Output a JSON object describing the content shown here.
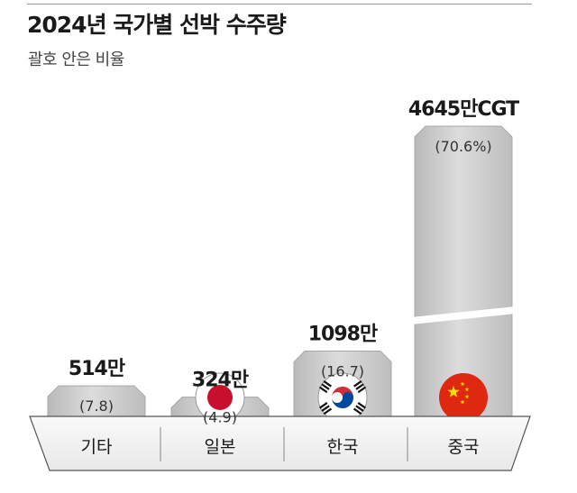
{
  "title": "2024년 국가별 선박 수주량",
  "subtitle": "괄호 안은 비율",
  "chart_data": {
    "type": "bar",
    "title": "2024년 국가별 선박 수주량",
    "subtitle": "괄호 안은 비율",
    "categories": [
      "기타",
      "일본",
      "한국",
      "중국"
    ],
    "values": [
      514,
      324,
      1098,
      4645
    ],
    "value_labels": [
      "514만",
      "324만",
      "1098만",
      "4645만CGT"
    ],
    "share_labels": [
      "(7.8)",
      "(4.9)",
      "(16.7)",
      "(70.6%)"
    ],
    "shares": [
      7.8,
      4.9,
      16.7,
      70.6
    ],
    "unit": "만CGT",
    "axis_break": true,
    "flags": [
      "",
      "japan-flag",
      "korea-flag",
      "china-flag"
    ],
    "colors": {
      "bar": "#c9c9c9",
      "bar_highlight": "#e4e4e4",
      "base": "#f2f2f2",
      "base_stroke": "#555555",
      "text": "#1a1a1a"
    }
  }
}
